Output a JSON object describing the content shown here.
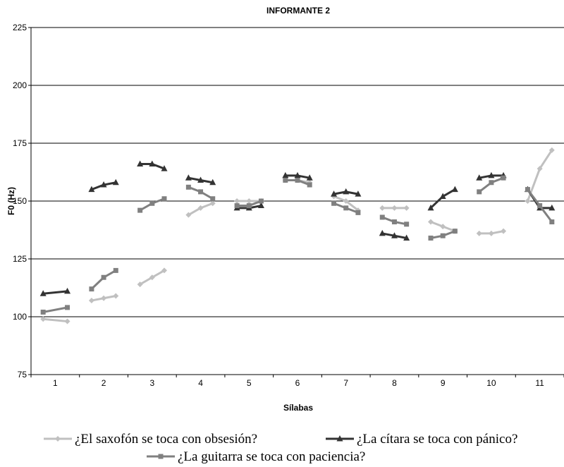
{
  "chart_data": {
    "type": "line",
    "title": "INFORMANTE 2",
    "xlabel": "Sílabas",
    "ylabel": "F0 (Hz)",
    "ylim": [
      75,
      225
    ],
    "yticks": [
      75,
      100,
      125,
      150,
      175,
      200,
      225
    ],
    "xticks": [
      1,
      2,
      3,
      4,
      5,
      6,
      7,
      8,
      9,
      10,
      11
    ],
    "grid": "horizontal",
    "legend_position": "bottom",
    "series": [
      {
        "name": "¿El saxofón se toca con obsesión?",
        "color": "#c0c0c0",
        "marker": "diamond",
        "segments": [
          [
            [
              0.75,
              99
            ],
            [
              1.25,
              98
            ]
          ],
          [
            [
              1.75,
              107
            ],
            [
              2.0,
              108
            ],
            [
              2.25,
              109
            ]
          ],
          [
            [
              2.75,
              114
            ],
            [
              3.0,
              117
            ],
            [
              3.25,
              120
            ]
          ],
          [
            [
              3.75,
              144
            ],
            [
              4.0,
              147
            ],
            [
              4.25,
              149
            ]
          ],
          [
            [
              4.75,
              150
            ],
            [
              5.0,
              150
            ],
            [
              5.25,
              150
            ]
          ],
          [
            [
              5.75,
              159
            ],
            [
              6.0,
              159
            ],
            [
              6.25,
              158
            ]
          ],
          [
            [
              6.75,
              152
            ],
            [
              7.0,
              150
            ],
            [
              7.25,
              146
            ]
          ],
          [
            [
              7.75,
              147
            ],
            [
              8.0,
              147
            ],
            [
              8.25,
              147
            ]
          ],
          [
            [
              8.75,
              141
            ],
            [
              9.0,
              139
            ],
            [
              9.25,
              137
            ]
          ],
          [
            [
              9.75,
              136
            ],
            [
              10.0,
              136
            ],
            [
              10.25,
              137
            ]
          ],
          [
            [
              10.75,
              150
            ],
            [
              11.0,
              164
            ],
            [
              11.25,
              172
            ]
          ]
        ]
      },
      {
        "name": "¿La cítara se toca con pánico?",
        "color": "#333333",
        "marker": "triangle",
        "segments": [
          [
            [
              0.75,
              110
            ],
            [
              1.25,
              111
            ]
          ],
          [
            [
              1.75,
              155
            ],
            [
              2.0,
              157
            ],
            [
              2.25,
              158
            ]
          ],
          [
            [
              2.75,
              166
            ],
            [
              3.0,
              166
            ],
            [
              3.25,
              164
            ]
          ],
          [
            [
              3.75,
              160
            ],
            [
              4.0,
              159
            ],
            [
              4.25,
              158
            ]
          ],
          [
            [
              4.75,
              147
            ],
            [
              5.0,
              147
            ],
            [
              5.25,
              148
            ]
          ],
          [
            [
              5.75,
              161
            ],
            [
              6.0,
              161
            ],
            [
              6.25,
              160
            ]
          ],
          [
            [
              6.75,
              153
            ],
            [
              7.0,
              154
            ],
            [
              7.25,
              153
            ]
          ],
          [
            [
              7.75,
              136
            ],
            [
              8.0,
              135
            ],
            [
              8.25,
              134
            ]
          ],
          [
            [
              8.75,
              147
            ],
            [
              9.0,
              152
            ],
            [
              9.25,
              155
            ]
          ],
          [
            [
              9.75,
              160
            ],
            [
              10.0,
              161
            ],
            [
              10.25,
              161
            ]
          ],
          [
            [
              10.75,
              155
            ],
            [
              11.0,
              147
            ],
            [
              11.25,
              147
            ]
          ]
        ]
      },
      {
        "name": "¿La guitarra se toca con paciencia?",
        "color": "#808080",
        "marker": "square",
        "segments": [
          [
            [
              0.75,
              102
            ],
            [
              1.25,
              104
            ]
          ],
          [
            [
              1.75,
              112
            ],
            [
              2.0,
              117
            ],
            [
              2.25,
              120
            ]
          ],
          [
            [
              2.75,
              146
            ],
            [
              3.0,
              149
            ],
            [
              3.25,
              151
            ]
          ],
          [
            [
              3.75,
              156
            ],
            [
              4.0,
              154
            ],
            [
              4.25,
              151
            ]
          ],
          [
            [
              4.75,
              148
            ],
            [
              5.0,
              148
            ],
            [
              5.25,
              150
            ]
          ],
          [
            [
              5.75,
              159
            ],
            [
              6.0,
              159
            ],
            [
              6.25,
              157
            ]
          ],
          [
            [
              6.75,
              149
            ],
            [
              7.0,
              147
            ],
            [
              7.25,
              145
            ]
          ],
          [
            [
              7.75,
              143
            ],
            [
              8.0,
              141
            ],
            [
              8.25,
              140
            ]
          ],
          [
            [
              8.75,
              134
            ],
            [
              9.0,
              135
            ],
            [
              9.25,
              137
            ]
          ],
          [
            [
              9.75,
              154
            ],
            [
              10.0,
              158
            ],
            [
              10.25,
              160
            ]
          ],
          [
            [
              10.75,
              155
            ],
            [
              11.0,
              148
            ],
            [
              11.25,
              141
            ]
          ]
        ]
      }
    ]
  }
}
